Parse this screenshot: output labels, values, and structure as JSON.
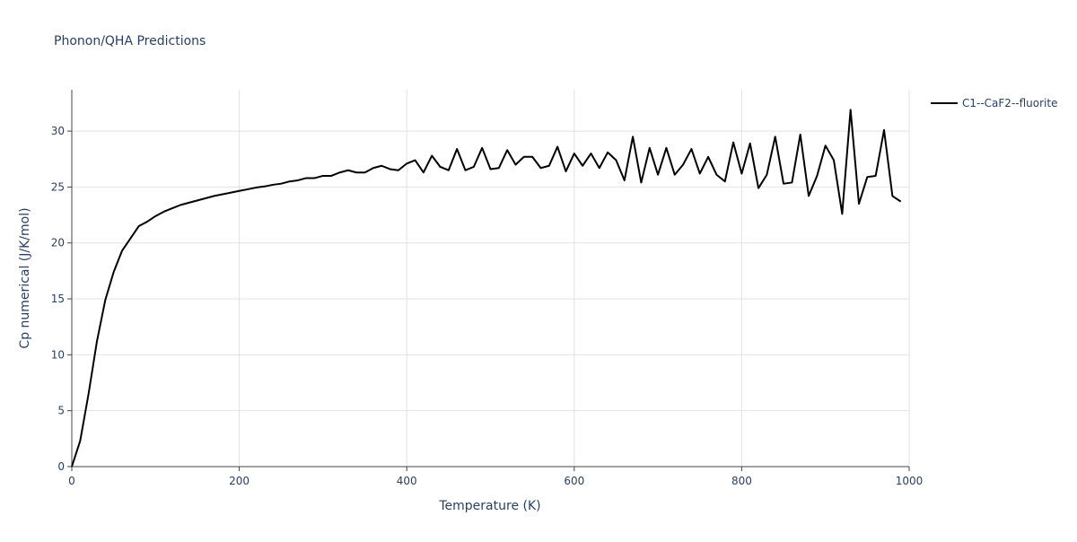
{
  "chart_data": {
    "type": "line",
    "title": "Phonon/QHA Predictions",
    "x_label": "Temperature (K)",
    "y_label": "Cp numerical (J/K/mol)",
    "x": [
      0,
      10,
      20,
      30,
      40,
      50,
      60,
      70,
      80,
      90,
      100,
      110,
      120,
      130,
      140,
      150,
      160,
      170,
      180,
      190,
      200,
      210,
      220,
      230,
      240,
      250,
      260,
      270,
      280,
      290,
      300,
      310,
      320,
      330,
      340,
      350,
      360,
      370,
      380,
      390,
      400,
      410,
      420,
      430,
      440,
      450,
      460,
      470,
      480,
      490,
      500,
      510,
      520,
      530,
      540,
      550,
      560,
      570,
      580,
      590,
      600,
      610,
      620,
      630,
      640,
      650,
      660,
      670,
      680,
      690,
      700,
      710,
      720,
      730,
      740,
      750,
      760,
      770,
      780,
      790,
      800,
      810,
      820,
      830,
      840,
      850,
      860,
      870,
      880,
      890,
      900,
      910,
      920,
      930,
      940,
      950,
      960,
      970,
      980,
      990
    ],
    "series": [
      {
        "name": "C1--CaF2--fluorite",
        "color": "#000000",
        "values": [
          0,
          2.3,
          6.5,
          11.2,
          14.9,
          17.4,
          19.3,
          20.4,
          21.5,
          21.9,
          22.4,
          22.8,
          23.1,
          23.4,
          23.6,
          23.8,
          24.0,
          24.2,
          24.35,
          24.5,
          24.65,
          24.8,
          24.95,
          25.05,
          25.2,
          25.3,
          25.5,
          25.6,
          25.8,
          25.8,
          26.0,
          26.0,
          26.3,
          26.5,
          26.3,
          26.3,
          26.7,
          26.9,
          26.6,
          26.5,
          27.1,
          27.4,
          26.3,
          27.8,
          26.8,
          26.5,
          28.4,
          26.5,
          26.8,
          28.5,
          26.6,
          26.7,
          28.3,
          27.0,
          27.7,
          27.7,
          26.7,
          26.9,
          28.6,
          26.4,
          28.0,
          26.9,
          28.0,
          26.7,
          28.1,
          27.4,
          25.6,
          29.5,
          25.4,
          28.5,
          26.1,
          28.5,
          26.1,
          27.0,
          28.4,
          26.2,
          27.7,
          26.1,
          25.5,
          29.0,
          26.2,
          28.9,
          24.9,
          26.1,
          29.5,
          25.3,
          25.4,
          29.7,
          24.2,
          26.0,
          28.7,
          27.4,
          22.6,
          31.9,
          23.5,
          25.9,
          26.0,
          30.1,
          24.2,
          23.7
        ]
      }
    ],
    "xlim": [
      0,
      1000
    ],
    "ylim": [
      0,
      33.7
    ],
    "xticks": [
      0,
      200,
      400,
      600,
      800,
      1000
    ],
    "yticks": [
      0,
      5,
      10,
      15,
      20,
      25,
      30
    ],
    "grid": true
  }
}
